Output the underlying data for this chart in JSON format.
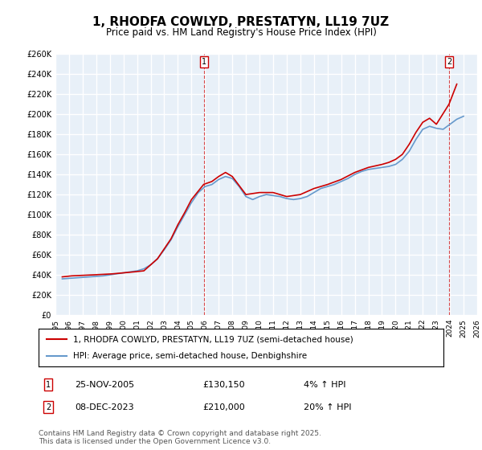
{
  "title": "1, RHODFA COWLYD, PRESTATYN, LL19 7UZ",
  "subtitle": "Price paid vs. HM Land Registry's House Price Index (HPI)",
  "ylabel": "",
  "background_color": "#ffffff",
  "plot_bg_color": "#e8f0f8",
  "grid_color": "#ffffff",
  "red_color": "#cc0000",
  "blue_color": "#6699cc",
  "ylim": [
    0,
    260000
  ],
  "yticks": [
    0,
    20000,
    40000,
    60000,
    80000,
    100000,
    120000,
    140000,
    160000,
    180000,
    200000,
    220000,
    240000,
    260000
  ],
  "annotation1": {
    "x": 2005.9,
    "label": "1",
    "date": "25-NOV-2005",
    "price": "£130,150",
    "pct": "4% ↑ HPI"
  },
  "annotation2": {
    "x": 2023.93,
    "label": "2",
    "date": "08-DEC-2023",
    "price": "£210,000",
    "pct": "20% ↑ HPI"
  },
  "legend1": "1, RHODFA COWLYD, PRESTATYN, LL19 7UZ (semi-detached house)",
  "legend2": "HPI: Average price, semi-detached house, Denbighshire",
  "footer": "Contains HM Land Registry data © Crown copyright and database right 2025.\nThis data is licensed under the Open Government Licence v3.0.",
  "hpi_data": {
    "years": [
      1995.5,
      1996.0,
      1996.5,
      1997.0,
      1997.5,
      1998.0,
      1998.5,
      1999.0,
      1999.5,
      2000.0,
      2000.5,
      2001.0,
      2001.5,
      2002.0,
      2002.5,
      2003.0,
      2003.5,
      2004.0,
      2004.5,
      2005.0,
      2005.5,
      2006.0,
      2006.5,
      2007.0,
      2007.5,
      2008.0,
      2008.5,
      2009.0,
      2009.5,
      2010.0,
      2010.5,
      2011.0,
      2011.5,
      2012.0,
      2012.5,
      2013.0,
      2013.5,
      2014.0,
      2014.5,
      2015.0,
      2015.5,
      2016.0,
      2016.5,
      2017.0,
      2017.5,
      2018.0,
      2018.5,
      2019.0,
      2019.5,
      2020.0,
      2020.5,
      2021.0,
      2021.5,
      2022.0,
      2022.5,
      2023.0,
      2023.5,
      2024.0,
      2024.5,
      2025.0
    ],
    "values": [
      36000,
      36500,
      37000,
      37500,
      38000,
      38500,
      39000,
      40000,
      41000,
      42000,
      43000,
      44000,
      46000,
      50000,
      56000,
      65000,
      75000,
      88000,
      100000,
      112000,
      122000,
      128000,
      130000,
      135000,
      138000,
      136000,
      128000,
      118000,
      115000,
      118000,
      120000,
      119000,
      118000,
      116000,
      115000,
      116000,
      118000,
      122000,
      126000,
      128000,
      130000,
      133000,
      136000,
      140000,
      143000,
      145000,
      146000,
      147000,
      148000,
      150000,
      155000,
      163000,
      175000,
      185000,
      188000,
      186000,
      185000,
      190000,
      195000,
      198000
    ]
  },
  "price_data": {
    "years": [
      1995.5,
      1996.2,
      1997.0,
      1997.8,
      1998.5,
      1999.2,
      2000.0,
      2000.8,
      2001.5,
      2002.0,
      2002.5,
      2003.0,
      2003.5,
      2004.0,
      2004.5,
      2005.0,
      2005.9,
      2006.5,
      2007.0,
      2007.5,
      2008.0,
      2009.0,
      2010.0,
      2011.0,
      2012.0,
      2013.0,
      2014.0,
      2015.0,
      2016.0,
      2017.0,
      2018.0,
      2019.0,
      2019.5,
      2020.0,
      2020.5,
      2021.0,
      2021.5,
      2022.0,
      2022.5,
      2023.0,
      2023.93,
      2024.5
    ],
    "values": [
      38000,
      39000,
      39500,
      40000,
      40500,
      41000,
      42000,
      43000,
      44000,
      50000,
      56000,
      66000,
      76000,
      90000,
      102000,
      115000,
      130150,
      133000,
      138000,
      142000,
      138000,
      120000,
      122000,
      122000,
      118000,
      120000,
      126000,
      130000,
      135000,
      142000,
      147000,
      150000,
      152000,
      155000,
      160000,
      170000,
      182000,
      192000,
      196000,
      190000,
      210000,
      230000
    ]
  }
}
